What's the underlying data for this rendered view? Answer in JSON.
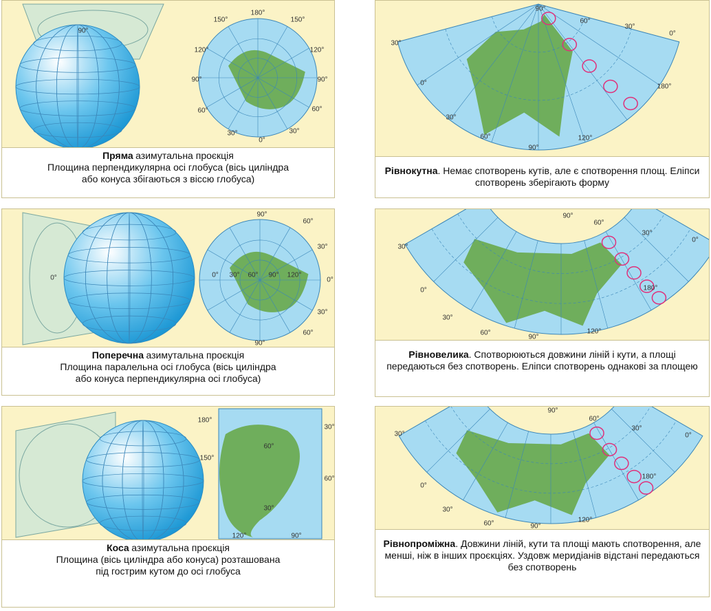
{
  "panels": [
    {
      "caption": {
        "bold": "Пряма",
        "rest": "азимутальна проєкція",
        "lines": [
          "Площина перпендикулярна осі глобуса (вісь циліндра",
          "або конуса збігаються з віссю глобуса)"
        ]
      },
      "labels": [
        "180°",
        "150°",
        "150°",
        "120°",
        "120°",
        "90°",
        "90°",
        "60°",
        "60°",
        "30°",
        "30°",
        "0°",
        "90°"
      ]
    },
    {
      "caption": {
        "bold": "Поперечна",
        "rest": "азимутальна проєкція",
        "lines": [
          "Площина паралельна осі глобуса (вісь циліндра",
          "або конуса перпендикулярна осі глобуса)"
        ]
      },
      "labels": [
        "90°",
        "60°",
        "30°",
        "0°",
        "30°",
        "60°",
        "90°",
        "0°",
        "30°",
        "60°",
        "90°",
        "120°",
        "0°"
      ]
    },
    {
      "caption": {
        "bold": "Коса",
        "rest": "азимутальна проєкція",
        "lines": [
          "Площина (вісь циліндра або конуса) розташована",
          "під гострим кутом до осі глобуса"
        ]
      },
      "labels": [
        "180°",
        "150°",
        "30°",
        "60°",
        "60°",
        "30°",
        "120°",
        "90°"
      ]
    },
    {
      "caption": {
        "bold": "Рівнокутна",
        "rest": ". Немає спотворень кутів, але є спотворення площ. Еліпси спотворень зберігають форму"
      },
      "labels": [
        "90°",
        "60°",
        "30°",
        "0°",
        "30°",
        "0°",
        "180°",
        "30°",
        "60°",
        "90°",
        "120°"
      ]
    },
    {
      "caption": {
        "bold": "Рівновелика",
        "rest": ". Спотворюються довжини ліній і кути, а площі передаються без спотворень. Еліпси спотворень однакові за площею"
      },
      "labels": [
        "90°",
        "60°",
        "30°",
        "0°",
        "30°",
        "0°",
        "180°",
        "30°",
        "60°",
        "90°",
        "120°"
      ]
    },
    {
      "caption": {
        "bold": "Рівнопроміжна",
        "rest": ". Довжини ліній, кути та площі мають спотворення, але менші, ніж в інших проєкціях. Уздовж меридіанів відстані передаються без спотворень"
      },
      "labels": [
        "90°",
        "60°",
        "30°",
        "0°",
        "30°",
        "0°",
        "180°",
        "30°",
        "60°",
        "90°",
        "120°"
      ]
    }
  ]
}
